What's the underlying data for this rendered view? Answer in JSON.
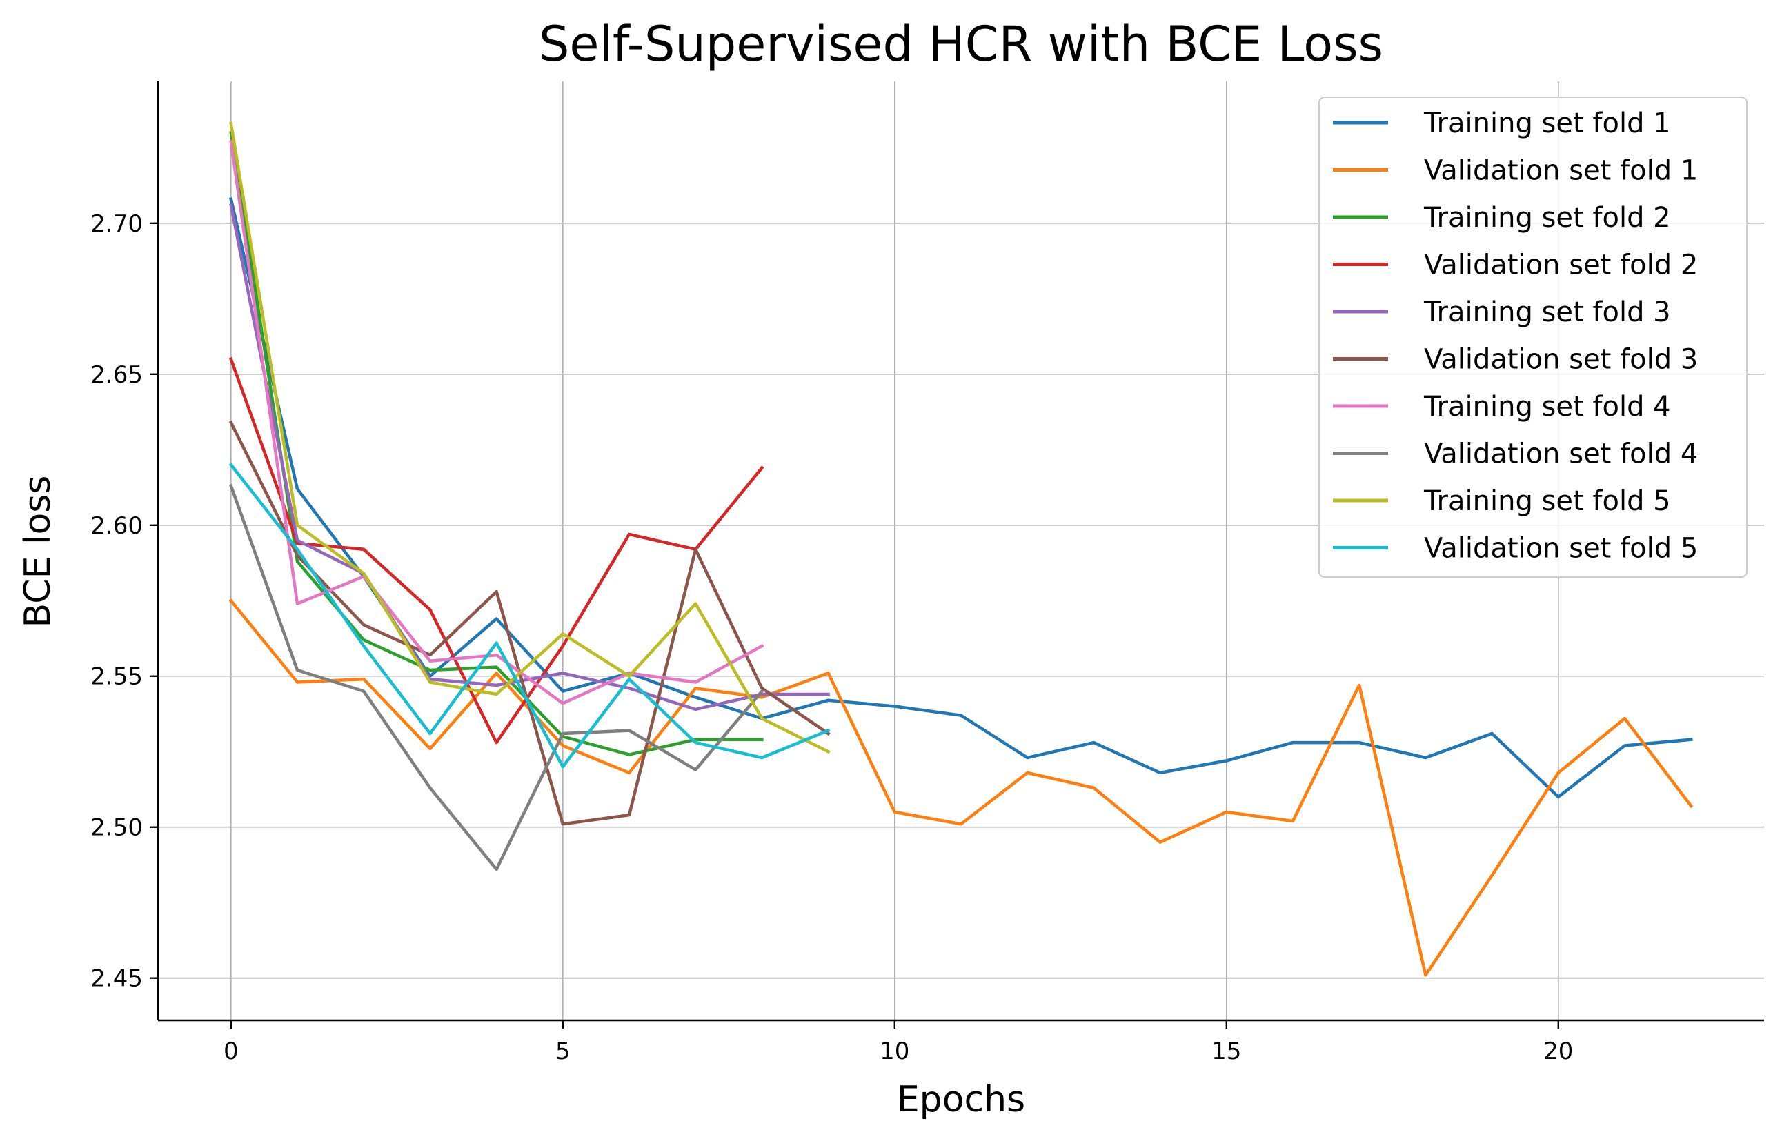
{
  "chart_data": {
    "type": "line",
    "title": "Self-Supervised HCR with BCE Loss",
    "xlabel": "Epochs",
    "ylabel": "BCE loss",
    "xlim": [
      -1.1,
      23.1
    ],
    "ylim": [
      2.436,
      2.747
    ],
    "xticks": [
      0,
      5,
      10,
      15,
      20
    ],
    "yticks": [
      2.45,
      2.5,
      2.55,
      2.6,
      2.65,
      2.7
    ],
    "ytick_labels": [
      "2.45",
      "2.50",
      "2.55",
      "2.60",
      "2.65",
      "2.70"
    ],
    "grid": true,
    "legend_position": "upper right",
    "series": [
      {
        "name": "Training set fold 1",
        "color": "#1f77b4",
        "values": [
          2.708,
          2.612,
          2.583,
          2.55,
          2.569,
          2.545,
          2.551,
          2.543,
          2.536,
          2.542,
          2.54,
          2.537,
          2.523,
          2.528,
          2.518,
          2.522,
          2.528,
          2.528,
          2.523,
          2.531,
          2.51,
          2.527,
          2.529
        ]
      },
      {
        "name": "Validation set fold 1",
        "color": "#ff7f0e",
        "values": [
          2.575,
          2.548,
          2.549,
          2.526,
          2.551,
          2.527,
          2.518,
          2.546,
          2.543,
          2.551,
          2.505,
          2.501,
          2.518,
          2.513,
          2.495,
          2.505,
          2.502,
          2.547,
          2.451,
          2.484,
          2.518,
          2.536,
          2.507
        ]
      },
      {
        "name": "Training set fold 2",
        "color": "#2ca02c",
        "values": [
          2.73,
          2.588,
          2.562,
          2.552,
          2.553,
          2.53,
          2.524,
          2.529,
          2.529
        ]
      },
      {
        "name": "Validation set fold 2",
        "color": "#d62728",
        "values": [
          2.655,
          2.594,
          2.592,
          2.572,
          2.528,
          2.56,
          2.597,
          2.592,
          2.619
        ]
      },
      {
        "name": "Training set fold 3",
        "color": "#9467bd",
        "values": [
          2.706,
          2.595,
          2.584,
          2.549,
          2.547,
          2.551,
          2.546,
          2.539,
          2.544,
          2.544
        ]
      },
      {
        "name": "Validation set fold 3",
        "color": "#8c564b",
        "values": [
          2.634,
          2.59,
          2.567,
          2.557,
          2.578,
          2.501,
          2.504,
          2.592,
          2.546,
          2.531
        ]
      },
      {
        "name": "Training set fold 4",
        "color": "#e377c2",
        "values": [
          2.727,
          2.574,
          2.583,
          2.555,
          2.557,
          2.541,
          2.551,
          2.548,
          2.56
        ]
      },
      {
        "name": "Validation set fold 4",
        "color": "#7f7f7f",
        "values": [
          2.613,
          2.552,
          2.545,
          2.513,
          2.486,
          2.531,
          2.532,
          2.519,
          2.545
        ]
      },
      {
        "name": "Training set fold 5",
        "color": "#bcbd22",
        "values": [
          2.733,
          2.6,
          2.584,
          2.548,
          2.544,
          2.564,
          2.55,
          2.574,
          2.536,
          2.525
        ]
      },
      {
        "name": "Validation set fold 5",
        "color": "#17becf",
        "values": [
          2.62,
          2.592,
          2.56,
          2.531,
          2.561,
          2.52,
          2.549,
          2.528,
          2.523,
          2.532
        ]
      }
    ]
  }
}
